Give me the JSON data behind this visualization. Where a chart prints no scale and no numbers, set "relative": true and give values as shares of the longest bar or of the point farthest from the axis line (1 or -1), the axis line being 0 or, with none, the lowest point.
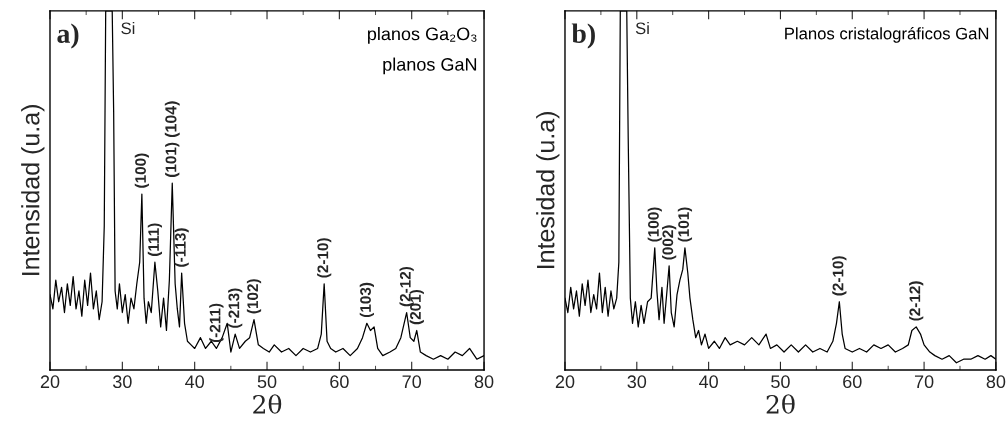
{
  "chart_data": [
    {
      "type": "line",
      "title": "a)",
      "xlabel": "2θ",
      "ylabel": "Intensidad (u.a)",
      "relative": true,
      "grid": false,
      "xlim": [
        20,
        80
      ],
      "xticks": [
        20,
        30,
        40,
        50,
        60,
        70,
        80
      ],
      "x": [
        20,
        20.4,
        20.8,
        21.2,
        21.6,
        22,
        22.4,
        22.8,
        23.2,
        23.6,
        24,
        24.4,
        24.8,
        25.2,
        25.6,
        26,
        26.4,
        26.8,
        27.2,
        27.5,
        27.7,
        28.6,
        28.8,
        29.0,
        29.3,
        29.6,
        30,
        30.4,
        30.8,
        31.2,
        31.6,
        32.0,
        32.4,
        32.7,
        33.0,
        33.3,
        33.6,
        34.0,
        34.5,
        34.9,
        35.3,
        35.7,
        36.1,
        36.5,
        36.9,
        37.3,
        37.6,
        37.9,
        38.2,
        38.6,
        39,
        39.5,
        40,
        40.8,
        41.5,
        42.3,
        43,
        43.8,
        44.5,
        45,
        45.6,
        46.2,
        47,
        47.6,
        48.2,
        48.8,
        49.5,
        50.3,
        51,
        52,
        53,
        54,
        55,
        56,
        57,
        57.5,
        57.9,
        58.3,
        58.8,
        59.5,
        60.5,
        61.5,
        62.5,
        63.2,
        63.8,
        64.3,
        64.8,
        65.3,
        66,
        67,
        67.8,
        68.5,
        69.3,
        69.8,
        70.3,
        70.7,
        71.2,
        72,
        73,
        74,
        75,
        76,
        77,
        78,
        79,
        80
      ],
      "series": [
        {
          "color": "#000000",
          "values": [
            0.21,
            0.17,
            0.25,
            0.19,
            0.23,
            0.16,
            0.24,
            0.18,
            0.26,
            0.17,
            0.22,
            0.15,
            0.25,
            0.18,
            0.27,
            0.17,
            0.22,
            0.14,
            0.19,
            0.4,
            1.0,
            1.0,
            0.72,
            0.22,
            0.17,
            0.24,
            0.16,
            0.21,
            0.13,
            0.2,
            0.17,
            0.24,
            0.3,
            0.49,
            0.2,
            0.13,
            0.19,
            0.16,
            0.3,
            0.22,
            0.12,
            0.2,
            0.11,
            0.25,
            0.52,
            0.24,
            0.17,
            0.12,
            0.27,
            0.13,
            0.08,
            0.07,
            0.06,
            0.09,
            0.06,
            0.08,
            0.06,
            0.09,
            0.13,
            0.05,
            0.1,
            0.06,
            0.08,
            0.09,
            0.14,
            0.07,
            0.06,
            0.05,
            0.07,
            0.05,
            0.06,
            0.04,
            0.06,
            0.05,
            0.06,
            0.1,
            0.24,
            0.08,
            0.06,
            0.05,
            0.06,
            0.04,
            0.06,
            0.09,
            0.13,
            0.11,
            0.12,
            0.06,
            0.04,
            0.05,
            0.06,
            0.09,
            0.16,
            0.09,
            0.08,
            0.11,
            0.05,
            0.04,
            0.03,
            0.04,
            0.03,
            0.05,
            0.04,
            0.06,
            0.03,
            0.04
          ]
        }
      ],
      "annotations": [
        "planos Ga₂O₃",
        "planos GaN",
        {
          "text": "Si",
          "x": 28.6,
          "y": 1.0
        },
        {
          "text": "(100)",
          "x": 32.7,
          "y": 0.49
        },
        {
          "text": "(111)",
          "x": 34.5,
          "y": 0.3
        },
        {
          "text": "(101)",
          "x": 36.9,
          "y": 0.52
        },
        "(104)",
        {
          "text": "(-113)",
          "x": 38.2,
          "y": 0.27
        },
        {
          "text": "(-211)",
          "x": 43,
          "y": 0.06
        },
        {
          "text": "(-213)",
          "x": 45.6,
          "y": 0.1
        },
        {
          "text": "(102)",
          "x": 48.2,
          "y": 0.14
        },
        {
          "text": "(2-10)",
          "x": 57.9,
          "y": 0.24
        },
        {
          "text": "(103)",
          "x": 63.8,
          "y": 0.13
        },
        {
          "text": "(2-12)",
          "x": 69.3,
          "y": 0.16
        },
        {
          "text": "(201)",
          "x": 70.7,
          "y": 0.11
        }
      ]
    },
    {
      "type": "line",
      "title": "b)",
      "xlabel": "2θ",
      "ylabel": "Intesidad (u.a)",
      "relative": true,
      "grid": false,
      "xlim": [
        20,
        80
      ],
      "xticks": [
        20,
        30,
        40,
        50,
        60,
        70,
        80
      ],
      "x": [
        20,
        20.4,
        20.8,
        21.2,
        21.6,
        22,
        22.4,
        22.8,
        23.2,
        23.6,
        24,
        24.4,
        24.8,
        25.2,
        25.6,
        26,
        26.4,
        26.8,
        27.2,
        27.5,
        27.7,
        28.6,
        28.8,
        29.1,
        29.4,
        29.8,
        30.2,
        30.6,
        31,
        31.5,
        32.0,
        32.5,
        32.8,
        33.1,
        33.5,
        33.8,
        34.2,
        34.5,
        34.8,
        35.2,
        35.6,
        36.0,
        36.4,
        36.7,
        37.1,
        37.4,
        37.8,
        38.2,
        38.6,
        39,
        39.5,
        40,
        40.8,
        41.5,
        42.3,
        43,
        44,
        45,
        46,
        47,
        48,
        48.6,
        49.5,
        50.5,
        51.5,
        52.5,
        53.5,
        54.5,
        55.5,
        56.5,
        57.3,
        57.8,
        58.2,
        58.6,
        59,
        60,
        61,
        62,
        63,
        64,
        65,
        66,
        67,
        67.8,
        68.3,
        68.9,
        69.5,
        70,
        70.8,
        71.5,
        72.5,
        73.5,
        74.5,
        75.5,
        76.5,
        77.5,
        78.5,
        79.3,
        80
      ],
      "series": [
        {
          "color": "#000000",
          "values": [
            0.2,
            0.16,
            0.23,
            0.17,
            0.22,
            0.15,
            0.24,
            0.18,
            0.25,
            0.16,
            0.21,
            0.17,
            0.27,
            0.16,
            0.23,
            0.15,
            0.22,
            0.17,
            0.2,
            0.3,
            1.0,
            1.0,
            0.65,
            0.2,
            0.13,
            0.19,
            0.12,
            0.18,
            0.13,
            0.19,
            0.2,
            0.34,
            0.22,
            0.14,
            0.23,
            0.13,
            0.22,
            0.29,
            0.16,
            0.12,
            0.21,
            0.25,
            0.28,
            0.34,
            0.27,
            0.2,
            0.14,
            0.09,
            0.11,
            0.07,
            0.1,
            0.06,
            0.08,
            0.06,
            0.09,
            0.07,
            0.08,
            0.07,
            0.09,
            0.07,
            0.1,
            0.06,
            0.07,
            0.05,
            0.07,
            0.05,
            0.07,
            0.05,
            0.06,
            0.05,
            0.08,
            0.13,
            0.19,
            0.1,
            0.06,
            0.05,
            0.06,
            0.05,
            0.07,
            0.06,
            0.07,
            0.05,
            0.06,
            0.07,
            0.11,
            0.12,
            0.1,
            0.07,
            0.05,
            0.04,
            0.03,
            0.04,
            0.02,
            0.03,
            0.03,
            0.04,
            0.03,
            0.04,
            0.03
          ]
        }
      ],
      "annotations": [
        "Planos cristalográficos GaN",
        {
          "text": "Si",
          "x": 28.6,
          "y": 1.0
        },
        {
          "text": "(100)",
          "x": 32.5,
          "y": 0.34
        },
        {
          "text": "(002)",
          "x": 34.5,
          "y": 0.29
        },
        {
          "text": "(101)",
          "x": 36.7,
          "y": 0.34
        },
        {
          "text": "(2-10)",
          "x": 58.2,
          "y": 0.19
        },
        {
          "text": "(2-12)",
          "x": 68.9,
          "y": 0.12
        }
      ]
    }
  ]
}
